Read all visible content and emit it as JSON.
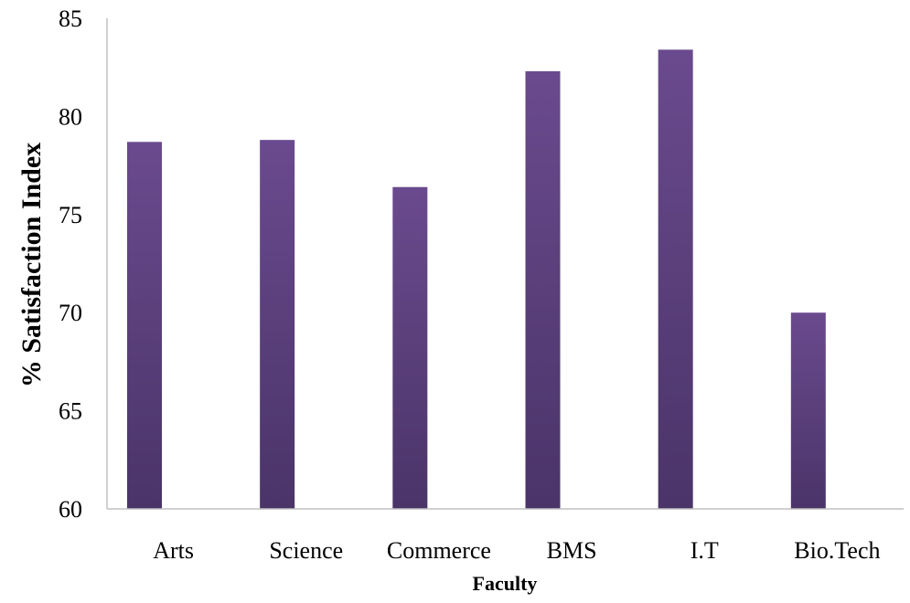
{
  "chart_data": {
    "type": "bar",
    "title": "",
    "xlabel": "Faculty",
    "ylabel": "% Satisfaction Index",
    "categories": [
      "Arts",
      "Science",
      "Commerce",
      "BMS",
      "I.T",
      "Bio.Tech"
    ],
    "values": [
      78.7,
      78.8,
      76.4,
      82.3,
      83.4,
      70.0
    ],
    "ylim": [
      60,
      85
    ],
    "yticks": [
      60,
      65,
      70,
      75,
      80,
      85
    ],
    "grid": false,
    "legend": "none",
    "colors": {
      "bar_top": "#6a4a8e",
      "bar_bottom": "#4a3468",
      "axis": "#c0c0c0"
    }
  }
}
